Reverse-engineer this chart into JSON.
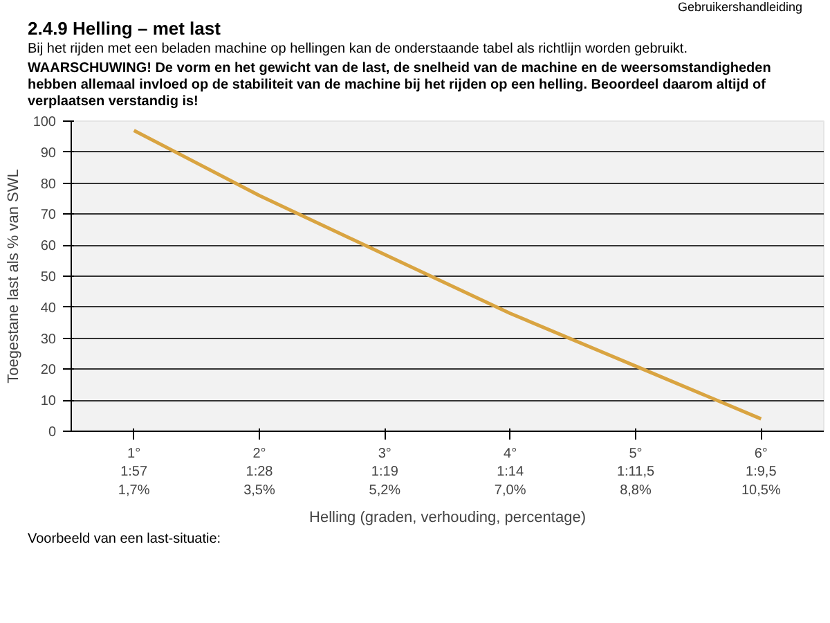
{
  "chart_data": {
    "type": "line",
    "title": "2.4.9 Helling – met last",
    "subtitle": "Bij het rijden met een beladen machine op hellingen kan de onderstaande tabel als richtlijn worden gebruikt.",
    "annotations": [
      "Gebruikershandleiding",
      "WAARSCHUWING! De vorm en het gewicht van de last, de snelheid van de machine en de weersomstandigheden hebben allemaal invloed op de stabiliteit van de machine bij het rijden op een helling. Beoordeel daarom altijd of verplaatsen verstandig is!",
      "Voorbeeld van een last-situatie:"
    ],
    "xlabel": "Helling (graden, verhouding, percentage)",
    "ylabel": "Toegestane last als % van SWL",
    "categories": [
      "1°\n1:57\n1,7%",
      "2°\n1:28\n3,5%",
      "3°\n1:19\n5,2%",
      "4°\n1:14\n7,0%",
      "5°\n1:11,5\n8,8%",
      "6°\n1:9,5\n10,5%"
    ],
    "series": [
      {
        "color": "#d9a441",
        "values": [
          97,
          76,
          57,
          38,
          21,
          4
        ]
      }
    ],
    "ylim": [
      0,
      100
    ],
    "yticks": [
      0,
      10,
      20,
      30,
      40,
      50,
      60,
      70,
      80,
      90,
      100
    ],
    "grid": "y",
    "marker": "none",
    "line_style": "solid"
  }
}
